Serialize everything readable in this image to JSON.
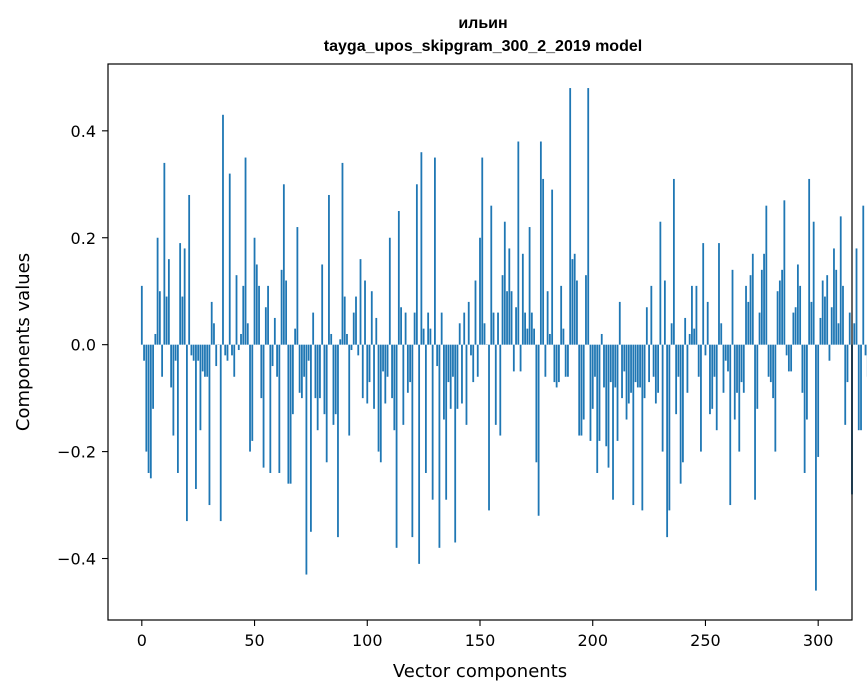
{
  "chart_data": {
    "type": "bar",
    "title": "ильин",
    "subtitle": "tayga_upos_skipgram_300_2_2019 model",
    "xlabel": "Vector components",
    "ylabel": "Components values",
    "xlim": [
      -15,
      315
    ],
    "ylim": [
      -0.515,
      0.525
    ],
    "xticks": [
      0,
      50,
      100,
      150,
      200,
      250,
      300
    ],
    "xtick_labels": [
      "0",
      "50",
      "100",
      "150",
      "200",
      "250",
      "300"
    ],
    "yticks": [
      -0.4,
      -0.2,
      0.0,
      0.2,
      0.4
    ],
    "ytick_labels": [
      "−0.4",
      "−0.2",
      "0.0",
      "0.2",
      "0.4"
    ],
    "grid": false,
    "bar_color": "#1f77b4",
    "x_start": 0,
    "values": [
      0.11,
      -0.03,
      -0.2,
      -0.24,
      -0.25,
      -0.12,
      0.02,
      0.2,
      0.1,
      -0.06,
      0.34,
      0.09,
      0.16,
      -0.08,
      -0.17,
      -0.03,
      -0.24,
      0.19,
      0.09,
      0.18,
      -0.33,
      0.28,
      -0.02,
      -0.03,
      -0.27,
      -0.03,
      -0.16,
      -0.05,
      -0.06,
      -0.06,
      -0.3,
      0.08,
      0.04,
      -0.04,
      0.0,
      -0.33,
      0.43,
      -0.02,
      -0.03,
      0.32,
      -0.02,
      -0.06,
      0.13,
      -0.01,
      0.02,
      0.11,
      0.35,
      0.04,
      -0.2,
      -0.18,
      0.2,
      0.15,
      0.11,
      -0.1,
      -0.23,
      0.07,
      0.11,
      -0.24,
      -0.04,
      0.05,
      -0.06,
      -0.24,
      0.14,
      0.3,
      0.12,
      -0.26,
      -0.26,
      -0.13,
      0.03,
      0.22,
      -0.09,
      -0.1,
      -0.06,
      -0.43,
      -0.03,
      -0.35,
      0.06,
      -0.1,
      -0.16,
      -0.1,
      0.15,
      -0.13,
      -0.22,
      0.28,
      0.02,
      -0.15,
      -0.13,
      -0.36,
      0.01,
      0.34,
      0.09,
      0.02,
      -0.17,
      -0.01,
      0.06,
      0.09,
      -0.02,
      0.16,
      -0.1,
      0.12,
      -0.11,
      -0.07,
      0.1,
      -0.12,
      0.05,
      -0.2,
      -0.22,
      -0.05,
      -0.11,
      -0.06,
      0.2,
      -0.1,
      -0.16,
      -0.38,
      0.25,
      0.07,
      -0.15,
      0.06,
      -0.09,
      -0.07,
      -0.36,
      0.06,
      0.3,
      -0.41,
      0.36,
      0.03,
      -0.24,
      0.06,
      0.03,
      -0.29,
      0.35,
      -0.04,
      -0.38,
      0.06,
      -0.14,
      -0.29,
      -0.07,
      -0.12,
      -0.06,
      -0.37,
      -0.12,
      0.04,
      -0.11,
      0.06,
      -0.15,
      0.08,
      -0.02,
      -0.07,
      0.12,
      -0.06,
      0.2,
      0.35,
      0.04,
      0.0,
      -0.31,
      0.26,
      0.06,
      -0.15,
      0.06,
      -0.17,
      0.13,
      0.23,
      0.1,
      0.18,
      0.1,
      -0.05,
      0.07,
      0.38,
      -0.05,
      0.17,
      0.06,
      0.03,
      0.22,
      0.06,
      0.03,
      -0.22,
      -0.32,
      0.38,
      0.31,
      -0.06,
      0.1,
      0.02,
      0.29,
      -0.07,
      -0.08,
      -0.07,
      0.11,
      0.03,
      -0.06,
      -0.06,
      0.48,
      0.16,
      0.17,
      0.12,
      -0.17,
      -0.17,
      -0.14,
      0.13,
      0.48,
      -0.18,
      -0.12,
      -0.06,
      -0.24,
      -0.18,
      0.02,
      -0.08,
      -0.19,
      -0.23,
      -0.07,
      -0.29,
      -0.08,
      -0.18,
      0.08,
      -0.1,
      -0.05,
      -0.14,
      -0.11,
      -0.09,
      -0.3,
      -0.07,
      -0.08,
      -0.08,
      -0.31,
      -0.1,
      0.07,
      -0.07,
      0.11,
      -0.06,
      -0.11,
      -0.09,
      0.23,
      -0.2,
      0.12,
      -0.36,
      -0.31,
      0.04,
      0.31,
      -0.13,
      -0.06,
      -0.26,
      -0.22,
      0.05,
      -0.09,
      0.02,
      0.11,
      0.03,
      0.11,
      -0.06,
      -0.2,
      0.19,
      -0.02,
      0.08,
      -0.13,
      -0.12,
      -0.06,
      -0.16,
      0.19,
      0.04,
      -0.09,
      -0.03,
      -0.05,
      -0.3,
      0.14,
      -0.14,
      -0.09,
      -0.2,
      -0.07,
      -0.09,
      0.11,
      0.08,
      0.13,
      0.17,
      -0.29,
      -0.12,
      0.06,
      0.14,
      0.17,
      0.26,
      -0.06,
      -0.07,
      -0.1,
      -0.2,
      0.1,
      0.12,
      0.14,
      0.27,
      -0.02,
      -0.05,
      -0.05,
      0.06,
      0.07,
      0.15,
      0.11,
      -0.09,
      -0.24,
      -0.14,
      0.31,
      0.08,
      0.23,
      -0.46,
      -0.21,
      0.05,
      0.12,
      0.09,
      0.13,
      -0.03,
      0.07,
      0.18,
      0.14,
      0.04,
      0.24,
      0.11,
      -0.15,
      -0.07,
      0.06,
      -0.28,
      0.04,
      0.18,
      -0.16,
      -0.16,
      0.26,
      -0.02,
      -0.06
    ]
  }
}
